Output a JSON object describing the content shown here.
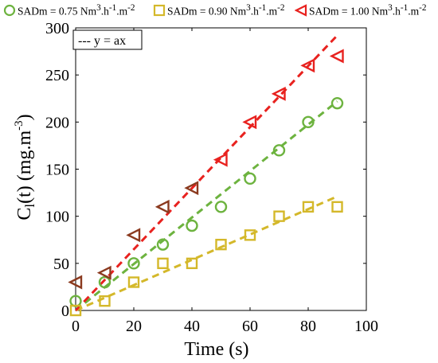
{
  "chart_data": {
    "type": "scatter",
    "xlabel": "Time (s)",
    "ylabel": "C",
    "ylabel_sub": "l",
    "ylabel_unit": "(t) (mg.m",
    "ylabel_unit_sup": "-3",
    "ylabel_unit_end": ")",
    "xlim": [
      0,
      100
    ],
    "ylim": [
      0,
      300
    ],
    "xticks": [
      0,
      20,
      40,
      60,
      80,
      100
    ],
    "yticks": [
      0,
      50,
      100,
      150,
      200,
      250,
      300
    ],
    "grid": false,
    "fit_legend_label": "--- y = ax",
    "fit_legend_placement": "top-left",
    "series": [
      {
        "name": "SADm = 0.75 Nm³.h⁻¹.m⁻²",
        "legend_parts": [
          "SADm = 0.75 Nm",
          "3",
          ".h",
          "-1",
          ".m",
          "-2"
        ],
        "marker": "circle",
        "color": "#6db33f",
        "x": [
          0,
          10,
          20,
          30,
          40,
          50,
          60,
          70,
          80,
          90
        ],
        "y": [
          10,
          30,
          50,
          70,
          90,
          110,
          140,
          170,
          200,
          220
        ],
        "fit": {
          "x": [
            0,
            90
          ],
          "y": [
            0,
            222
          ]
        }
      },
      {
        "name": "SADm = 0.90 Nm³.h⁻¹.m⁻²",
        "legend_parts": [
          "SADm = 0.90 Nm",
          "3",
          ".h",
          "-1",
          ".m",
          "-2"
        ],
        "marker": "square",
        "color": "#d4b82a",
        "x": [
          0,
          10,
          20,
          30,
          40,
          50,
          60,
          70,
          80,
          90
        ],
        "y": [
          0,
          10,
          30,
          50,
          50,
          70,
          80,
          100,
          110,
          110
        ],
        "fit": {
          "x": [
            0,
            90
          ],
          "y": [
            0,
            121
          ]
        }
      },
      {
        "name": "SADm = 1.00 Nm³.h⁻¹.m⁻²",
        "legend_parts": [
          "SADm = 1.00 Nm",
          "3",
          ".h",
          "-1",
          ".m",
          "-2"
        ],
        "marker": "triangle-left",
        "color": "#e8221f",
        "early_color": "#8b3a1f",
        "x": [
          0,
          10,
          20,
          30,
          40,
          50,
          60,
          70,
          80,
          90
        ],
        "y": [
          30,
          40,
          80,
          110,
          130,
          160,
          200,
          230,
          260,
          270
        ],
        "fit": {
          "x": [
            0,
            90
          ],
          "y": [
            0,
            292
          ]
        }
      }
    ]
  }
}
